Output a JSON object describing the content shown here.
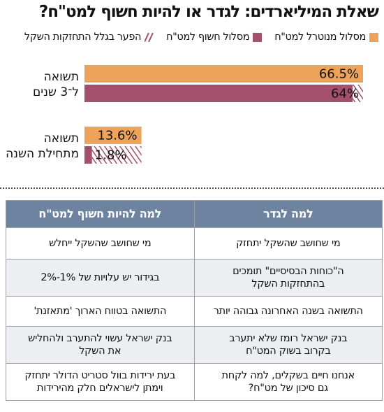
{
  "title": "שאלת המיליארדים: לגדר או להיות חשוף למט\"ח?",
  "legend": {
    "hedged": "מסלול מנוטרל למט\"ח",
    "exposed": "מסלול חשוף למט\"ח",
    "gap": "הפער בגלל התחזקות השקל"
  },
  "colors": {
    "hedged": "#eea35a",
    "exposed": "#a2506b",
    "gap_stripe": "#a2506b",
    "table_header": "#6d839f"
  },
  "chart_data": {
    "type": "bar",
    "orientation": "horizontal",
    "categories": [
      "תשואה ל־3 שנים",
      "תשואה מתחילת השנה"
    ],
    "category_lines": [
      [
        "תשואה",
        "ל־3 שנים"
      ],
      [
        "תשואה",
        "מתחילת השנה"
      ]
    ],
    "series": [
      {
        "name": "מסלול מנוטרל למט\"ח",
        "values": [
          66.5,
          13.6
        ],
        "labels": [
          "66.5%",
          "13.6%"
        ]
      },
      {
        "name": "מסלול חשוף למט\"ח",
        "values": [
          64,
          1.8
        ],
        "labels": [
          "64%",
          "1.8%"
        ]
      }
    ],
    "gap": {
      "name": "הפער בגלל התחזקות השקל",
      "values": [
        2.5,
        11.8
      ]
    },
    "xlim": [
      0,
      66.5
    ]
  },
  "table": {
    "headers": [
      "למה לגדר",
      "למה להיות חשוף למט\"ח"
    ],
    "rows": [
      [
        "מי שחושב שהשקל יתחזק",
        "מי שחושב שהשקל ייחלש"
      ],
      [
        "ה\"כוחות הבסיסיים\" תומכים\nבהתחזקות השקל",
        "בגידור יש עלויות של 1%-2%"
      ],
      [
        "התשואה בשנה האחרונה גבוהה יותר",
        "התשואה בטווח הארוך 'מתאזנת'"
      ],
      [
        "בנק ישראל רומז שלא יתערב\nבקרוב בשוק המט\"ח",
        "בנק ישראל עשוי להתערב ולהחליש\nאת השקל"
      ],
      [
        "אנחנו חיים בשקלים, למה לקחת\nגם סיכון של מט\"ח?",
        "בעת ירידות בוול סטריט הדולר יתחזק\nוימתן לישראלים חלק מהירידות"
      ]
    ]
  }
}
